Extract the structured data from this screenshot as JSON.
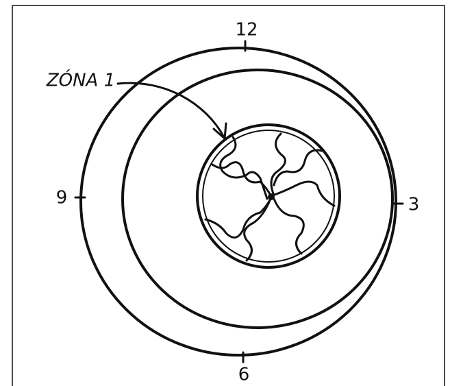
{
  "labels": {
    "top": "12",
    "right": "3",
    "bottom": "6",
    "left": "9"
  },
  "zone_label": "ZÓNA 1"
}
